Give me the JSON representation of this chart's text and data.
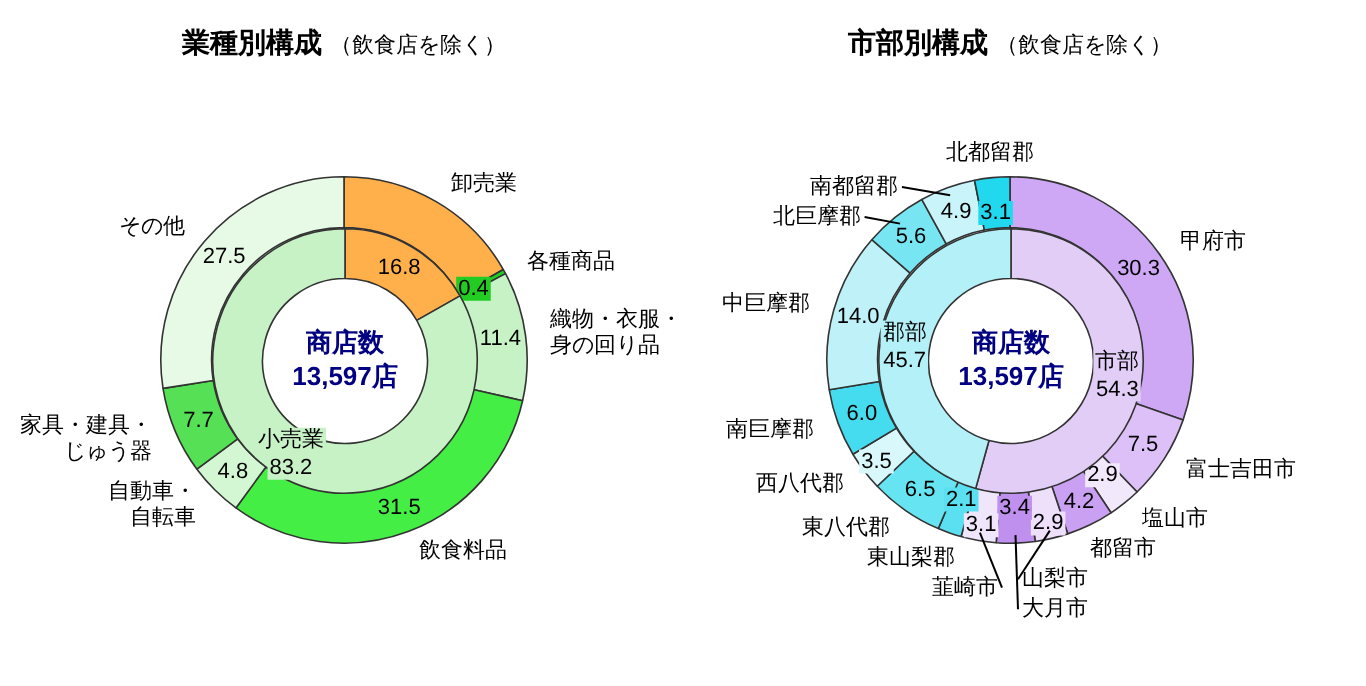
{
  "chart_data": [
    {
      "type": "donut",
      "title": "業種別構成",
      "subtitle": "（飲食店を除く）",
      "categories": [
        "卸売業",
        "各種商品",
        "織物・衣服・身の回り品",
        "飲食料品",
        "自動車・自転車",
        "家具・建具・じゅう器",
        "その他"
      ],
      "values": [
        16.8,
        0.4,
        11.4,
        31.5,
        4.8,
        7.7,
        27.5
      ],
      "colors": [
        "#ffb04a",
        "#22cc22",
        "#c6f2c6",
        "#44ee44",
        "#d2f7d2",
        "#55e055",
        "#e6fae6"
      ],
      "value_labels": [
        null,
        "0.4",
        "11.4",
        "31.5",
        "4.8",
        "7.7",
        "27.5"
      ]
    },
    {
      "type": "donut",
      "annotations": [
        "商店数",
        "13,597店"
      ],
      "categories": [
        null,
        "小売業"
      ],
      "values": [
        16.8,
        83.2
      ],
      "colors": [
        "#ffb04a",
        "#c6f2c6"
      ],
      "value_labels": [
        "16.8",
        "83.2"
      ]
    },
    {
      "type": "donut",
      "title": "市部別構成",
      "subtitle": "（飲食店を除く）",
      "categories": [
        "甲府市",
        "富士吉田市",
        "塩山市",
        "都留市",
        "山梨市",
        "大月市",
        "韮崎市",
        "東山梨郡",
        "東八代郡",
        "西八代郡",
        "南巨摩郡",
        "中巨摩郡",
        "北巨摩郡",
        "南都留郡",
        "北都留郡"
      ],
      "values": [
        30.3,
        7.5,
        2.9,
        4.2,
        2.9,
        3.4,
        3.1,
        2.1,
        6.5,
        3.5,
        6.0,
        14.0,
        5.6,
        4.9,
        3.1
      ],
      "colors": [
        "#cfa8f5",
        "#dcc0f7",
        "#f2e8fc",
        "#c9a0f2",
        "#eee0fb",
        "#c090ee",
        "#f0e6fb",
        "#5ae0f0",
        "#66e4f2",
        "#d8f8fc",
        "#44dcee",
        "#bff2f8",
        "#77e6f2",
        "#c8f4fa",
        "#22d8ee"
      ],
      "value_labels": [
        "30.3",
        "7.5",
        "2.9",
        "4.2",
        "2.9",
        "3.4",
        "3.1",
        "2.1",
        "6.5",
        "3.5",
        "6.0",
        "14.0",
        "5.6",
        "4.9",
        "3.1"
      ]
    },
    {
      "type": "donut",
      "annotations": [
        "商店数",
        "13,597店"
      ],
      "categories": [
        "市部",
        "郡部"
      ],
      "values": [
        54.3,
        45.7
      ],
      "colors": [
        "#e2cdf7",
        "#b4f0f7"
      ],
      "value_labels": [
        "54.3",
        "45.7"
      ]
    }
  ]
}
